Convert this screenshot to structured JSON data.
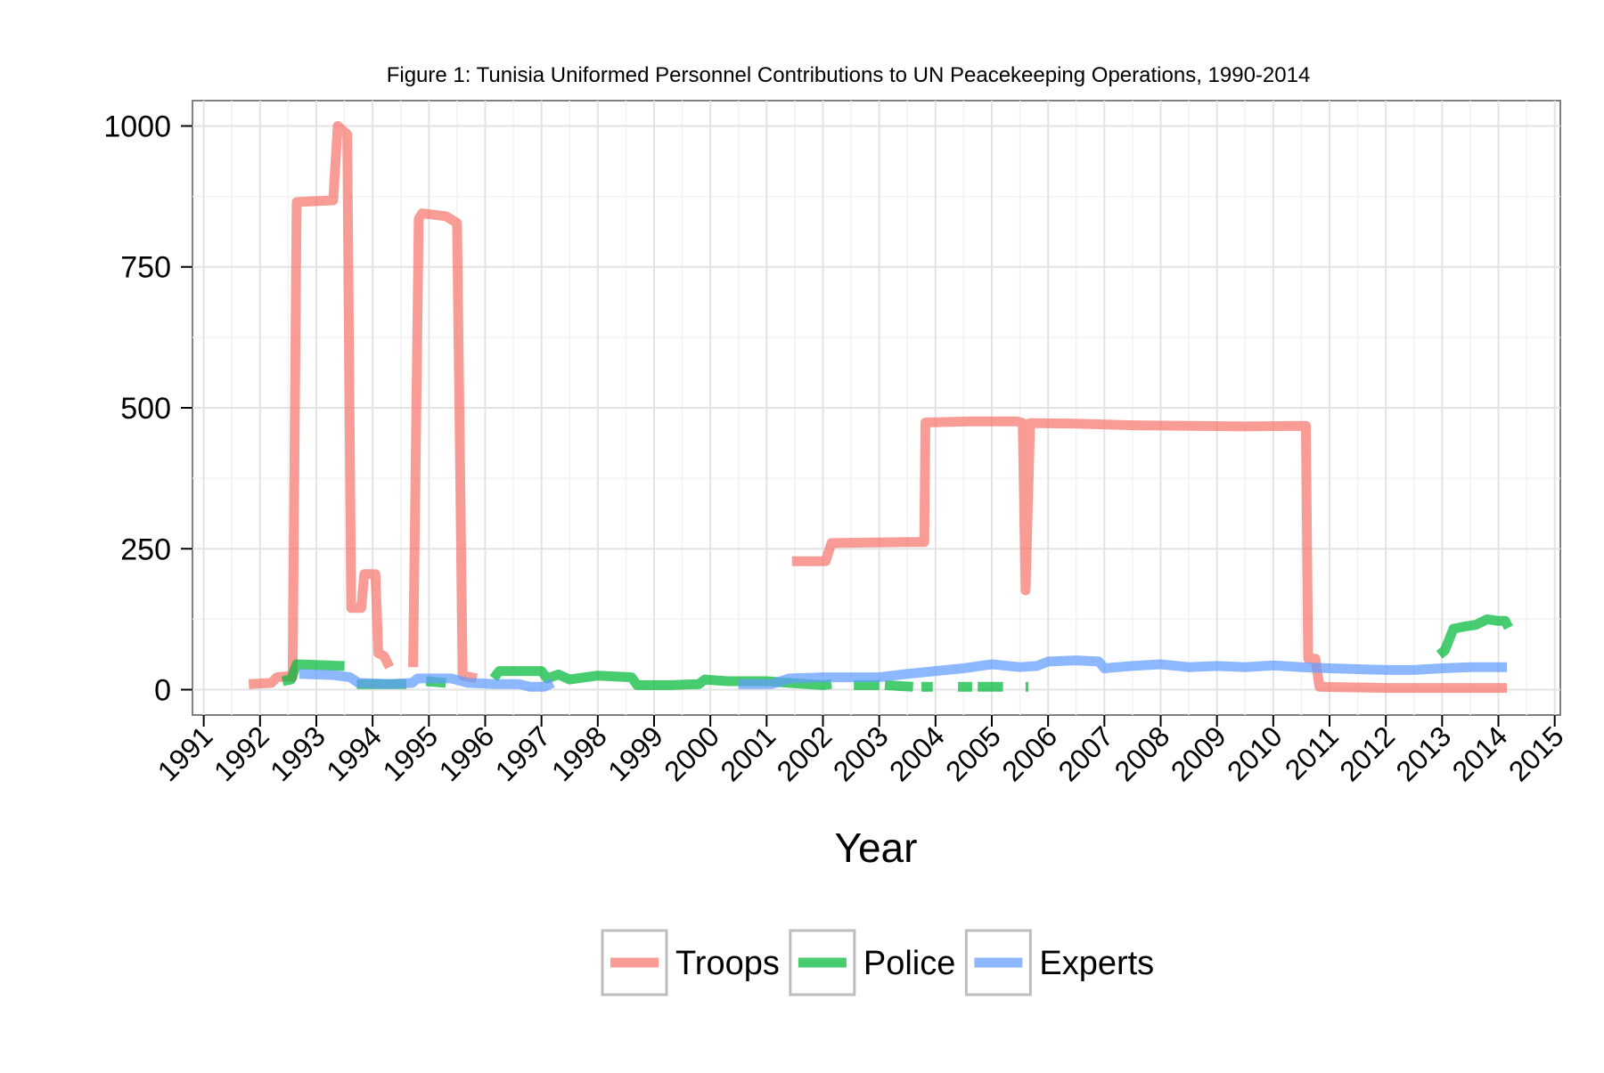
{
  "chart_data": {
    "type": "line",
    "title": "Figure 1: Tunisia Uniformed Personnel Contributions to UN Peacekeeping Operations, 1990-2014",
    "xlabel": "Year",
    "ylabel": "",
    "xlim": [
      1990.8,
      2015.1
    ],
    "ylim": [
      -45,
      1045
    ],
    "x_ticks": [
      "1991",
      "1992",
      "1993",
      "1994",
      "1995",
      "1996",
      "1997",
      "1998",
      "1999",
      "2000",
      "2001",
      "2002",
      "2003",
      "2004",
      "2005",
      "2006",
      "2007",
      "2008",
      "2009",
      "2010",
      "2011",
      "2012",
      "2013",
      "2014",
      "2015"
    ],
    "y_ticks": [
      "0",
      "250",
      "500",
      "750",
      "1000"
    ],
    "grid": true,
    "legend_position": "bottom",
    "series": [
      {
        "name": "Troops",
        "color": "#F8766D",
        "segments": [
          [
            [
              1991.8,
              10
            ],
            [
              1992.2,
              12
            ],
            [
              1992.3,
              22
            ],
            [
              1992.5,
              24
            ],
            [
              1992.58,
              22
            ],
            [
              1992.65,
              865
            ],
            [
              1993.3,
              868
            ],
            [
              1993.38,
              1000
            ],
            [
              1993.55,
              985
            ],
            [
              1993.62,
              145
            ],
            [
              1993.8,
              145
            ],
            [
              1993.85,
              205
            ],
            [
              1994.05,
              205
            ],
            [
              1994.1,
              65
            ],
            [
              1994.2,
              60
            ],
            [
              1994.3,
              40
            ]
          ],
          [
            [
              1994.72,
              40
            ],
            [
              1994.82,
              835
            ],
            [
              1994.88,
              845
            ],
            [
              1995.3,
              840
            ],
            [
              1995.5,
              828
            ],
            [
              1995.6,
              25
            ],
            [
              1995.85,
              20
            ]
          ],
          [
            [
              2001.45,
              228
            ],
            [
              2001.6,
              228
            ],
            [
              2002.05,
              228
            ],
            [
              2002.15,
              260
            ],
            [
              2003.6,
              262
            ],
            [
              2003.7,
              262
            ],
            [
              2003.8,
              262
            ],
            [
              2003.82,
              474
            ],
            [
              2004.6,
              476
            ],
            [
              2005.45,
              476
            ],
            [
              2005.55,
              473
            ],
            [
              2005.6,
              176
            ],
            [
              2005.68,
              473
            ],
            [
              2006.5,
              472
            ],
            [
              2007.5,
              469
            ],
            [
              2008.5,
              468
            ],
            [
              2009.5,
              467
            ],
            [
              2010.5,
              468
            ],
            [
              2010.58,
              468
            ],
            [
              2010.62,
              55
            ],
            [
              2010.75,
              55
            ],
            [
              2010.82,
              5
            ],
            [
              2012,
              3
            ],
            [
              2013,
              3
            ],
            [
              2014.15,
              3
            ]
          ]
        ]
      },
      {
        "name": "Police",
        "color": "#00BA38",
        "segments": [
          [
            [
              1992.4,
              15
            ],
            [
              1992.55,
              18
            ],
            [
              1992.65,
              45
            ],
            [
              1993.5,
              42
            ]
          ],
          [
            [
              1993.72,
              10
            ],
            [
              1994.6,
              10
            ]
          ],
          [
            [
              1994.95,
              15
            ],
            [
              1995.3,
              12
            ]
          ],
          [
            [
              1996.15,
              20
            ],
            [
              1996.25,
              33
            ],
            [
              1997,
              33
            ],
            [
              1997.1,
              20
            ],
            [
              1997.3,
              27
            ],
            [
              1997.5,
              18
            ],
            [
              1998,
              25
            ],
            [
              1998.6,
              22
            ],
            [
              1998.7,
              8
            ],
            [
              1999.3,
              8
            ],
            [
              1999.8,
              10
            ],
            [
              1999.9,
              18
            ],
            [
              2000.3,
              15
            ],
            [
              2001.0,
              15
            ],
            [
              2001.4,
              12
            ],
            [
              2002.0,
              8
            ],
            [
              2002.15,
              10
            ]
          ],
          [
            [
              2002.55,
              8
            ],
            [
              2003.0,
              8
            ]
          ],
          [
            [
              2003.1,
              8
            ],
            [
              2003.6,
              5
            ]
          ],
          [
            [
              2003.75,
              5
            ],
            [
              2003.95,
              5
            ]
          ],
          [
            [
              2004.4,
              5
            ],
            [
              2004.65,
              5
            ]
          ],
          [
            [
              2004.75,
              5
            ],
            [
              2005.2,
              5
            ]
          ],
          [
            [
              2005.6,
              5
            ],
            [
              2005.65,
              5
            ]
          ],
          [
            [
              2012.95,
              62
            ],
            [
              2013.05,
              70
            ],
            [
              2013.2,
              108
            ],
            [
              2013.4,
              112
            ],
            [
              2013.6,
              115
            ],
            [
              2013.8,
              125
            ],
            [
              2014.0,
              122
            ],
            [
              2014.12,
              122
            ],
            [
              2014.18,
              110
            ]
          ]
        ]
      },
      {
        "name": "Experts",
        "color": "#619CFF",
        "segments": [
          [
            [
              1992.7,
              28
            ],
            [
              1993.3,
              26
            ],
            [
              1993.6,
              22
            ],
            [
              1993.75,
              12
            ],
            [
              1994.3,
              10
            ],
            [
              1994.7,
              12
            ],
            [
              1994.8,
              20
            ],
            [
              1995.4,
              20
            ],
            [
              1995.7,
              12
            ],
            [
              1996.2,
              10
            ],
            [
              1996.6,
              10
            ],
            [
              1996.8,
              5
            ],
            [
              1997.05,
              5
            ],
            [
              1997.2,
              12
            ]
          ],
          [
            [
              2000.5,
              10
            ],
            [
              2001.1,
              10
            ],
            [
              2001.4,
              20
            ],
            [
              2002,
              22
            ],
            [
              2003,
              22
            ],
            [
              2003.5,
              28
            ],
            [
              2004,
              33
            ],
            [
              2004.5,
              38
            ],
            [
              2005,
              45
            ],
            [
              2005.5,
              40
            ],
            [
              2005.8,
              42
            ],
            [
              2006,
              50
            ],
            [
              2006.5,
              52
            ],
            [
              2006.9,
              50
            ],
            [
              2007.0,
              38
            ],
            [
              2007.5,
              42
            ],
            [
              2008,
              45
            ],
            [
              2008.5,
              40
            ],
            [
              2009,
              42
            ],
            [
              2009.5,
              40
            ],
            [
              2010,
              43
            ],
            [
              2010.5,
              40
            ],
            [
              2011,
              38
            ],
            [
              2012,
              35
            ],
            [
              2012.5,
              35
            ],
            [
              2013,
              38
            ],
            [
              2013.5,
              40
            ],
            [
              2014.15,
              40
            ]
          ]
        ]
      }
    ]
  }
}
